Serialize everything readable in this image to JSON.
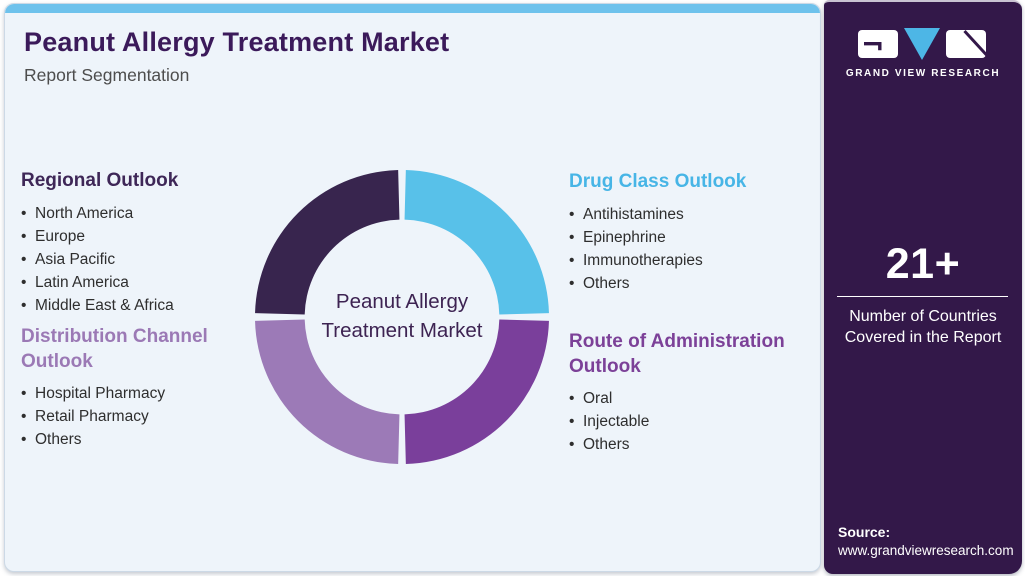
{
  "header": {
    "title": "Peanut Allergy Treatment Market",
    "subtitle": "Report Segmentation",
    "title_color": "#3b1a5a",
    "accent_bar_color": "#6ec2ec"
  },
  "sections": {
    "regional": {
      "title": "Regional Outlook",
      "color": "#3e2757",
      "items": [
        "North America",
        "Europe",
        "Asia Pacific",
        "Latin America",
        "Middle East & Africa"
      ]
    },
    "distribution": {
      "title": "Distribution Channel Outlook",
      "color": "#9b79b5",
      "items": [
        "Hospital Pharmacy",
        "Retail Pharmacy",
        "Others"
      ]
    },
    "drug_class": {
      "title": "Drug Class Outlook",
      "color": "#47b5e6",
      "items": [
        "Antihistamines",
        "Epinephrine",
        "Immunotherapies",
        "Others"
      ]
    },
    "route": {
      "title": "Route of Administration Outlook",
      "color": "#7c4198",
      "items": [
        "Oral",
        "Injectable",
        "Others"
      ]
    }
  },
  "chart_data": {
    "type": "donut",
    "title": "Peanut Allergy Treatment Market Report Segmentation",
    "center_label": "Peanut Allergy Treatment Market",
    "center_label_color": "#3d2352",
    "legend_position": "none",
    "segments": [
      {
        "label": "Drug Class Outlook",
        "value": 25,
        "color": "#58c1e9",
        "position": "top-right"
      },
      {
        "label": "Route of Administration Outlook",
        "value": 25,
        "color": "#7a3f9b",
        "position": "bottom-right"
      },
      {
        "label": "Distribution Channel Outlook",
        "value": 25,
        "color": "#9c7ab7",
        "position": "bottom-left"
      },
      {
        "label": "Regional Outlook",
        "value": 25,
        "color": "#38254e",
        "position": "top-left"
      }
    ]
  },
  "sidebar": {
    "bg_color": "#331849",
    "logo_text": "GRAND VIEW RESEARCH",
    "stat_value": "21+",
    "stat_caption": "Number of Countries Covered in the Report",
    "source_label": "Source:",
    "source_url": "www.grandviewresearch.com"
  }
}
